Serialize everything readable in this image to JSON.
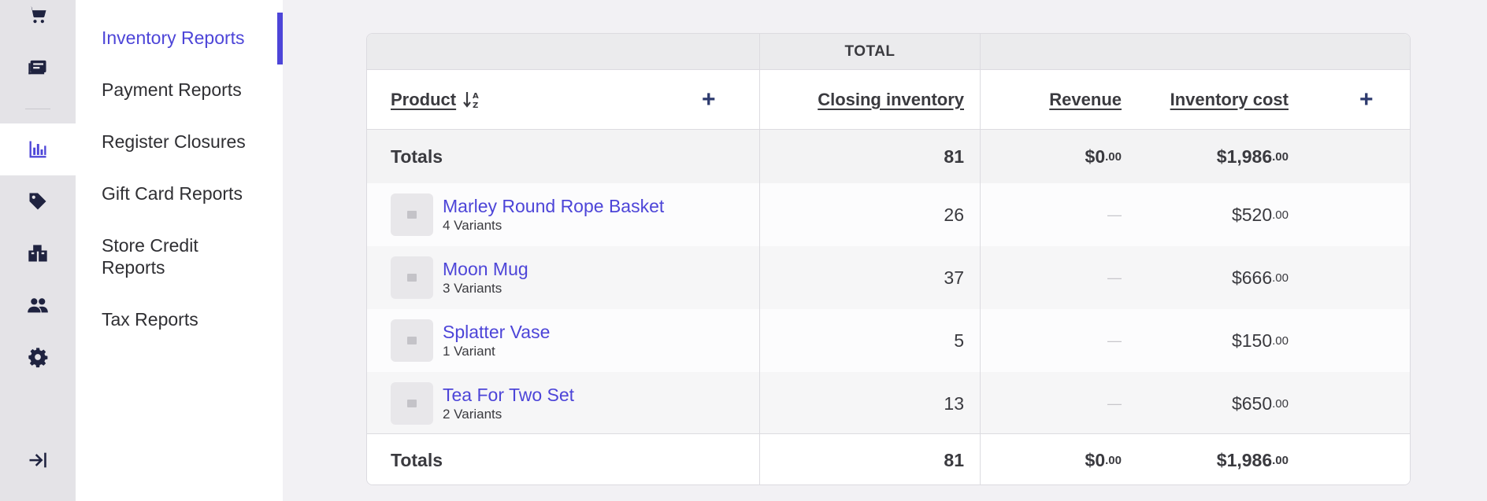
{
  "rail": {
    "items": [
      {
        "icon": "cart-icon",
        "active": false
      },
      {
        "icon": "register-icon",
        "active": false
      },
      {
        "icon": "reports-chart-icon",
        "active": true
      },
      {
        "icon": "tag-icon",
        "active": false
      },
      {
        "icon": "inventory-boxes-icon",
        "active": false
      },
      {
        "icon": "customers-icon",
        "active": false
      },
      {
        "icon": "settings-gear-icon",
        "active": false
      },
      {
        "icon": "collapse-sidebar-icon",
        "active": false
      }
    ]
  },
  "subnav": {
    "items": [
      {
        "label": "Inventory Reports",
        "active": true
      },
      {
        "label": "Payment Reports",
        "active": false
      },
      {
        "label": "Register Closures",
        "active": false
      },
      {
        "label": "Gift Card Reports",
        "active": false
      },
      {
        "label": "Store Credit Reports",
        "active": false
      },
      {
        "label": "Tax Reports",
        "active": false
      }
    ]
  },
  "table": {
    "group_header": "TOTAL",
    "columns": {
      "product": "Product",
      "closing_inventory": "Closing inventory",
      "revenue": "Revenue",
      "inventory_cost": "Inventory cost"
    },
    "sort_icon": "sort-alpha-ascending-icon",
    "totals_label": "Totals",
    "totals": {
      "closing_inventory": "81",
      "revenue_main": "$0",
      "revenue_cents": ".00",
      "inventory_cost_main": "$1,986",
      "inventory_cost_cents": ".00"
    },
    "rows": [
      {
        "name": "Marley Round Rope Basket",
        "variants": "4 Variants",
        "closing_inventory": "26",
        "revenue": "—",
        "cost_main": "$520",
        "cost_cents": ".00"
      },
      {
        "name": "Moon Mug",
        "variants": "3 Variants",
        "closing_inventory": "37",
        "revenue": "—",
        "cost_main": "$666",
        "cost_cents": ".00"
      },
      {
        "name": "Splatter Vase",
        "variants": "1 Variant",
        "closing_inventory": "5",
        "revenue": "—",
        "cost_main": "$150",
        "cost_cents": ".00"
      },
      {
        "name": "Tea For Two Set",
        "variants": "2 Variants",
        "closing_inventory": "13",
        "revenue": "—",
        "cost_main": "$650",
        "cost_cents": ".00"
      }
    ]
  },
  "colors": {
    "accent": "#4d45d8",
    "icon_dark": "#2d3a6e"
  }
}
